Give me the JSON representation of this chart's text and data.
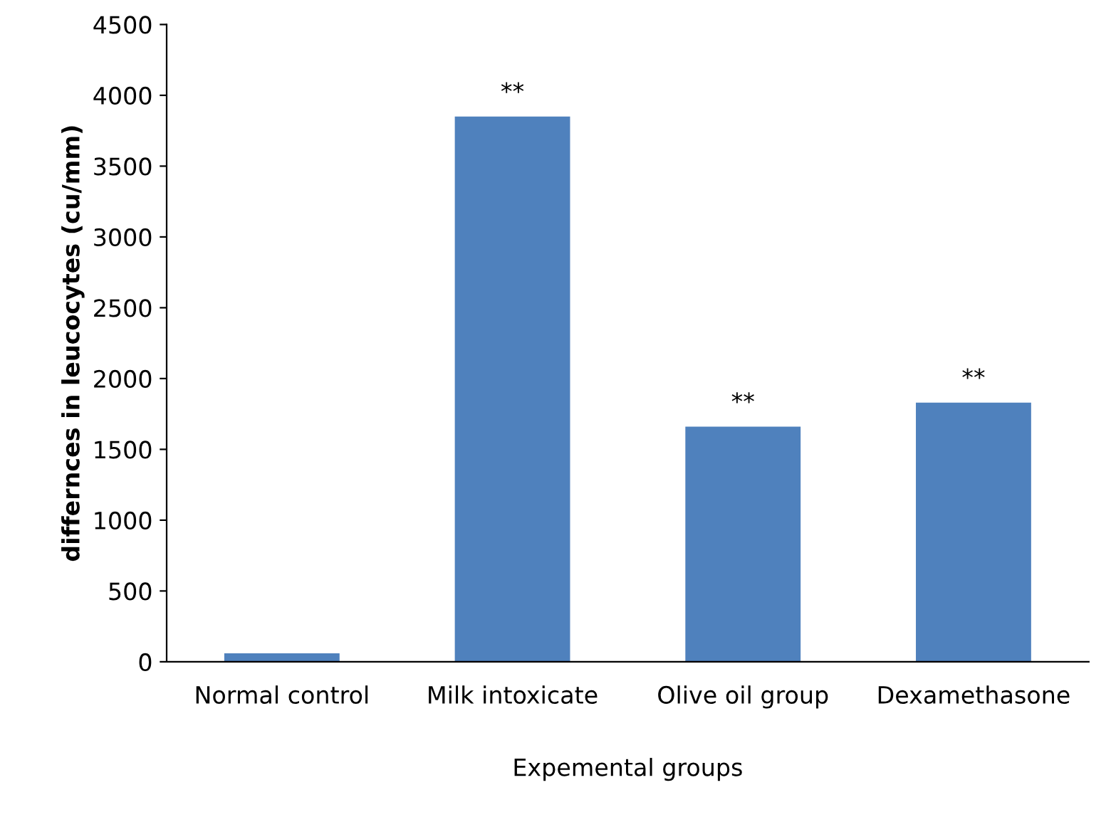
{
  "chart_data": {
    "type": "bar",
    "xlabel": "Expemental groups",
    "ylabel": "differnces in leucocytes (cu/mm)",
    "categories": [
      "Normal control",
      "Milk intoxicate",
      "Olive oil group",
      "Dexamethasone"
    ],
    "values": [
      60,
      3850,
      1660,
      1830
    ],
    "color": "#4f81bd",
    "ylim": [
      0,
      4500
    ],
    "yticks": [
      0,
      500,
      1000,
      1500,
      2000,
      2500,
      3000,
      3500,
      4000,
      4500
    ],
    "grid": false,
    "legend": false,
    "annotations": [
      {
        "text": "**",
        "x": "Milk intoxicate",
        "y": 3850
      },
      {
        "text": "**",
        "x": "Olive oil group",
        "y": 1660
      },
      {
        "text": "**",
        "x": "Dexamethasone",
        "y": 1830
      }
    ]
  }
}
